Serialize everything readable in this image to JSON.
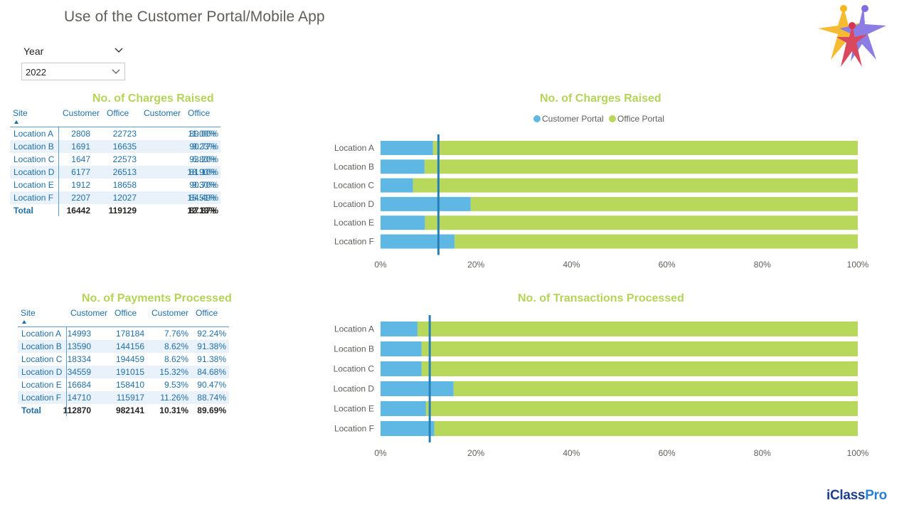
{
  "page": {
    "title": "Use of the Customer Portal/Mobile App",
    "brand_main": "iClass",
    "brand_accent": "Pro"
  },
  "colors": {
    "customer": "#5fb8e4",
    "office": "#b7d85a",
    "ref_line": "#2780b8",
    "title": "#b4d458",
    "table_text": "#1f6fa7"
  },
  "slicer": {
    "label": "Year",
    "value": "2022"
  },
  "charges_table": {
    "title": "No. of Charges Raised",
    "headers": [
      "Site",
      "Customer",
      "Office",
      "Customer",
      "Office"
    ],
    "rows": [
      [
        "Location A",
        "2808",
        "22723",
        "11.00%",
        "89.00%"
      ],
      [
        "Location B",
        "1691",
        "16635",
        "9.23%",
        "90.77%"
      ],
      [
        "Location C",
        "1647",
        "22573",
        "6.80%",
        "93.20%"
      ],
      [
        "Location D",
        "6177",
        "26513",
        "18.90%",
        "81.10%"
      ],
      [
        "Location E",
        "1912",
        "18658",
        "9.30%",
        "90.70%"
      ],
      [
        "Location F",
        "2207",
        "12027",
        "15.51%",
        "84.49%"
      ]
    ],
    "total": [
      "Total",
      "16442",
      "119129",
      "12.13%",
      "87.87%"
    ]
  },
  "payments_table": {
    "title": "No. of Payments Processed",
    "headers": [
      "Site",
      "Customer",
      "Office",
      "Customer",
      "Office"
    ],
    "rows": [
      [
        "Location A",
        "14993",
        "178184",
        "7.76%",
        "92.24%"
      ],
      [
        "Location B",
        "13590",
        "144156",
        "8.62%",
        "91.38%"
      ],
      [
        "Location C",
        "18334",
        "194459",
        "8.62%",
        "91.38%"
      ],
      [
        "Location D",
        "34559",
        "191015",
        "15.32%",
        "84.68%"
      ],
      [
        "Location E",
        "16684",
        "158410",
        "9.53%",
        "90.47%"
      ],
      [
        "Location F",
        "14710",
        "115917",
        "11.26%",
        "88.74%"
      ]
    ],
    "total": [
      "Total",
      "112870",
      "982141",
      "10.31%",
      "89.69%"
    ]
  },
  "chart_data": [
    {
      "type": "bar",
      "orientation": "horizontal",
      "stacked": "percent",
      "title": "No. of Charges Raised",
      "legend": {
        "placement": "top-center",
        "items": [
          "Customer Portal",
          "Office Portal"
        ]
      },
      "categories": [
        "Location A",
        "Location B",
        "Location C",
        "Location D",
        "Location E",
        "Location F"
      ],
      "series": [
        {
          "name": "Customer Portal",
          "values": [
            11.0,
            9.23,
            6.8,
            18.9,
            9.3,
            15.51
          ]
        },
        {
          "name": "Office Portal",
          "values": [
            89.0,
            90.77,
            93.2,
            81.1,
            90.7,
            84.49
          ]
        }
      ],
      "reference_line": 12.13,
      "xlim": [
        0,
        100
      ],
      "x_ticks": [
        "0%",
        "20%",
        "40%",
        "60%",
        "80%",
        "100%"
      ],
      "grid": false
    },
    {
      "type": "bar",
      "orientation": "horizontal",
      "stacked": "percent",
      "title": "No. of Transactions Processed",
      "categories": [
        "Location A",
        "Location B",
        "Location C",
        "Location D",
        "Location E",
        "Location F"
      ],
      "series": [
        {
          "name": "Customer Portal",
          "values": [
            7.76,
            8.62,
            8.62,
            15.32,
            9.53,
            11.26
          ]
        },
        {
          "name": "Office Portal",
          "values": [
            92.24,
            91.38,
            91.38,
            84.68,
            90.47,
            88.74
          ]
        }
      ],
      "reference_line": 10.31,
      "xlim": [
        0,
        100
      ],
      "x_ticks": [
        "0%",
        "20%",
        "40%",
        "60%",
        "80%",
        "100%"
      ],
      "grid": false
    }
  ]
}
